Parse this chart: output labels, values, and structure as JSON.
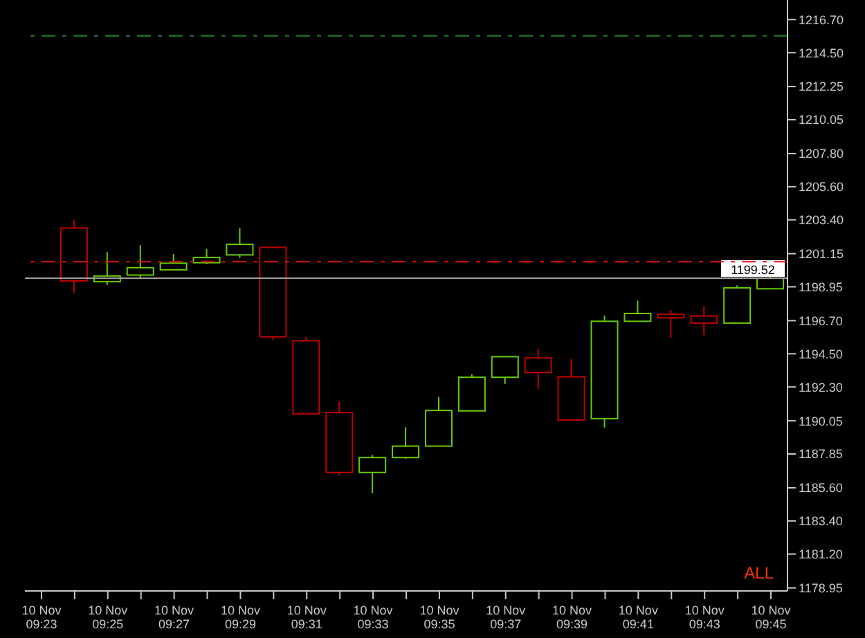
{
  "chart_data": {
    "type": "candlestick",
    "categories": [
      "10 Nov 09:23",
      null,
      "10 Nov 09:25",
      null,
      "10 Nov 09:27",
      null,
      "10 Nov 09:29",
      null,
      "10 Nov 09:31",
      null,
      "10 Nov 09:33",
      null,
      "10 Nov 09:35",
      null,
      "10 Nov 09:37",
      null,
      "10 Nov 09:39",
      null,
      "10 Nov 09:41",
      null,
      "10 Nov 09:43",
      null,
      "10 Nov 09:45"
    ],
    "ohlc": [
      null,
      [
        1202.86,
        1203.36,
        1198.55,
        1199.34
      ],
      [
        1199.29,
        1201.25,
        1199.08,
        1199.67
      ],
      [
        1199.73,
        1201.71,
        1199.49,
        1200.22
      ],
      [
        1200.08,
        1201.13,
        1200.08,
        1200.52
      ],
      [
        1200.55,
        1201.45,
        1200.46,
        1200.9
      ],
      [
        1201.07,
        1202.85,
        1200.87,
        1201.77
      ],
      [
        1201.57,
        1201.57,
        1195.43,
        1195.63
      ],
      [
        1195.37,
        1195.63,
        1190.51,
        1190.51
      ],
      [
        1190.6,
        1191.33,
        1186.41,
        1186.62
      ],
      [
        1186.62,
        1187.79,
        1185.24,
        1187.61
      ],
      [
        1187.61,
        1189.63,
        1187.53,
        1188.37
      ],
      [
        1188.37,
        1191.62,
        1188.37,
        1190.74
      ],
      [
        1190.71,
        1193.15,
        1190.71,
        1192.94
      ],
      [
        1192.94,
        1194.31,
        1192.5,
        1194.31
      ],
      [
        1194.23,
        1194.84,
        1192.18,
        1193.26
      ],
      [
        1192.97,
        1194.17,
        1190.1,
        1190.1
      ],
      [
        1190.19,
        1197.03,
        1189.6,
        1196.66
      ],
      [
        1196.66,
        1198.03,
        1196.66,
        1197.18
      ],
      [
        1197.12,
        1197.41,
        1195.57,
        1196.89
      ],
      [
        1197.01,
        1197.68,
        1195.74,
        1196.54
      ],
      [
        1196.54,
        1199.05,
        1196.54,
        1198.88
      ],
      [
        1198.82,
        1199.64,
        1198.82,
        1199.52
      ]
    ],
    "colors": [
      null,
      "#c00000",
      "#66cc00",
      "#66cc00",
      "#66cc00",
      "#66cc00",
      "#66cc00",
      "#c00000",
      "#c00000",
      "#c00000",
      "#66cc00",
      "#66cc00",
      "#66cc00",
      "#66cc00",
      "#66cc00",
      "#c00000",
      "#c00000",
      "#66cc00",
      "#66cc00",
      "#c00000",
      "#c00000",
      "#66cc00",
      "#66cc00"
    ],
    "ylim": [
      1178.75,
      1218.0
    ],
    "yticks": [
      {
        "value": 1178.95,
        "label": "1178.95"
      },
      {
        "value": 1181.2,
        "label": "1181.20"
      },
      {
        "value": 1183.4,
        "label": "1183.40"
      },
      {
        "value": 1185.6,
        "label": "1185.60"
      },
      {
        "value": 1187.85,
        "label": "1187.85"
      },
      {
        "value": 1190.05,
        "label": "1190.05"
      },
      {
        "value": 1192.3,
        "label": "1192.30"
      },
      {
        "value": 1194.5,
        "label": "1194.50"
      },
      {
        "value": 1196.7,
        "label": "1196.70"
      },
      {
        "value": 1198.95,
        "label": "1198.95"
      },
      {
        "value": 1201.15,
        "label": "1201.15"
      },
      {
        "value": 1203.4,
        "label": "1203.40"
      },
      {
        "value": 1205.6,
        "label": "1205.60"
      },
      {
        "value": 1207.8,
        "label": "1207.80"
      },
      {
        "value": 1210.05,
        "label": "1210.05"
      },
      {
        "value": 1212.25,
        "label": "1212.25"
      },
      {
        "value": 1214.5,
        "label": "1214.50"
      },
      {
        "value": 1216.7,
        "label": "1216.70"
      }
    ],
    "ref_lines": [
      {
        "axis": "y",
        "value": 1199.52,
        "label": "1199.52",
        "color": "#a0a0a0",
        "line_style": "solid"
      },
      {
        "axis": "y",
        "value": 1200.61,
        "color": "#e01010",
        "line_style": "dashed"
      },
      {
        "axis": "y",
        "value": 1215.62,
        "color": "#208020",
        "line_style": "dashed"
      }
    ],
    "annotations": [
      "ALL"
    ]
  }
}
